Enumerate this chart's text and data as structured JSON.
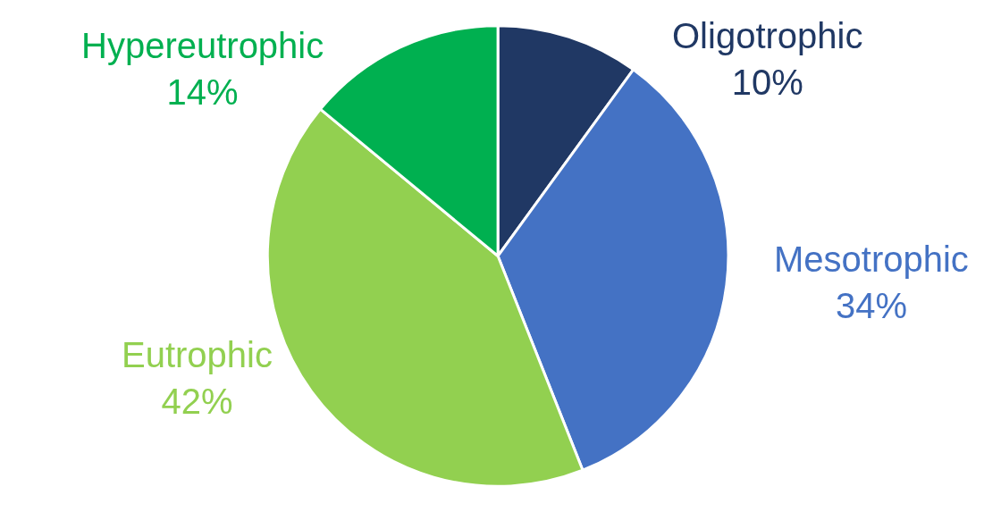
{
  "chart_data": {
    "type": "pie",
    "categories": [
      "Oligotrophic",
      "Mesotrophic",
      "Eutrophic",
      "Hypereutrophic"
    ],
    "values": [
      10,
      34,
      42,
      14
    ],
    "value_labels": [
      "10%",
      "34%",
      "42%",
      "14%"
    ],
    "colors": [
      "#203864",
      "#4472c4",
      "#92d050",
      "#00b050"
    ],
    "legend": false
  }
}
